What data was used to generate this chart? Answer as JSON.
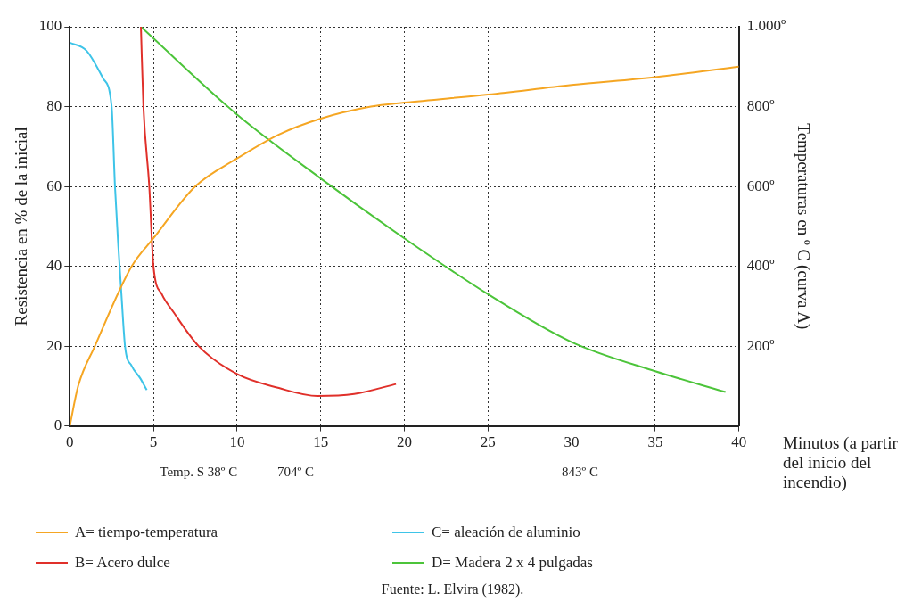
{
  "chart_data": {
    "type": "line",
    "xlabel": "Minutos (a partir del inicio del incendio)",
    "ylabel": "Resistencia en % de la inicial",
    "y2label": "Temperaturas en º C (curva A)",
    "xlim": [
      0,
      40
    ],
    "xticks": [
      0,
      5,
      10,
      15,
      20,
      25,
      30,
      35,
      40
    ],
    "ylim": [
      0,
      100
    ],
    "yticks": [
      0,
      20,
      40,
      60,
      80,
      100
    ],
    "y2lim": [
      0,
      1000
    ],
    "y2ticks": [
      {
        "value": 200,
        "label": "200º"
      },
      {
        "value": 400,
        "label": "400º"
      },
      {
        "value": 600,
        "label": "600º"
      },
      {
        "value": 800,
        "label": "800º"
      },
      {
        "value": 1000,
        "label": "1.000º"
      }
    ],
    "grid": true,
    "legend": "bottom",
    "marker": "none",
    "line_style": "solid",
    "series": [
      {
        "name": "A= tiempo-temperatura",
        "color": "#f5a623",
        "axis": "y2",
        "x": [
          0,
          0.5,
          1.5,
          3.7,
          5,
          7.5,
          10,
          12.5,
          15,
          18,
          20,
          25,
          30,
          35,
          40
        ],
        "values": [
          0,
          100,
          200,
          400,
          470,
          600,
          670,
          730,
          770,
          800,
          810,
          830,
          854,
          874,
          900
        ]
      },
      {
        "name": "B= Acero dulce",
        "color": "#e0302a",
        "x": [
          4.25,
          4.4,
          4.75,
          5,
          5.5,
          6.2,
          7.7,
          10,
          12.5,
          14.8,
          17,
          19.5
        ],
        "values": [
          100,
          80,
          60,
          40,
          33,
          28.5,
          20,
          13,
          9.5,
          7.5,
          8,
          10.5
        ]
      },
      {
        "name": "C= aleación de aluminio",
        "color": "#3ec4e8",
        "x": [
          0,
          1,
          2,
          2.5,
          2.7,
          2.9,
          3.1,
          3.3,
          3.7,
          4.2,
          4.6
        ],
        "values": [
          96,
          94,
          87,
          80,
          60,
          45,
          32,
          20,
          15,
          12,
          9
        ]
      },
      {
        "name": "D= Madera 2 x 4 pulgadas",
        "color": "#4cc43a",
        "x": [
          4.25,
          10,
          15,
          20,
          25,
          30,
          35,
          39.2
        ],
        "values": [
          100,
          78,
          62,
          47,
          33,
          21,
          13.7,
          8.5
        ]
      }
    ],
    "annotations": [
      "Temp. S 38º C",
      "704º C",
      "843º C",
      "Fuente: L. Elvira (1982)."
    ]
  }
}
